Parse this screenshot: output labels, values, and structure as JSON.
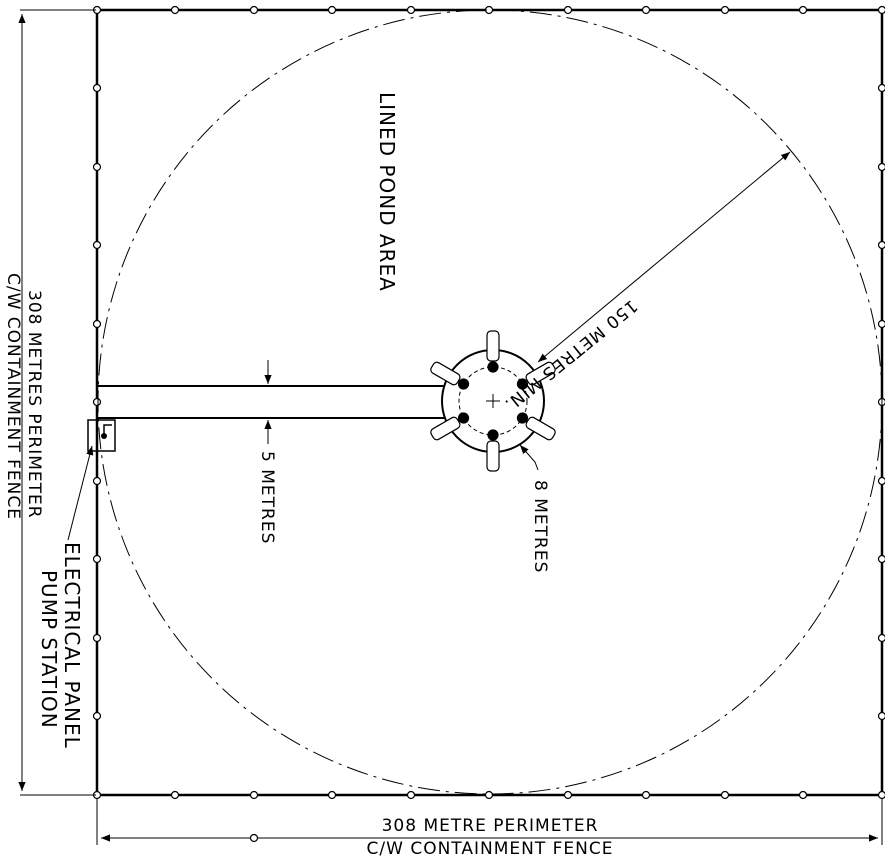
{
  "labels": {
    "pond_area": "LINED POND AREA",
    "radius": "150 METRES MIN.",
    "channel_width": "5 METRES",
    "platform_diameter": "8 METRES",
    "electrical_line1": "ELECTRICAL PANEL",
    "electrical_line2": "PUMP STATION",
    "side_line1": "308 METRES PERIMETER",
    "side_line2": "C/W CONTAINMENT FENCE",
    "bottom_line1": "308 METRE PERIMETER",
    "bottom_line2": "C/W CONTAINMENT FENCE"
  },
  "colors": {
    "ink": "#000000",
    "background": "#ffffff"
  }
}
